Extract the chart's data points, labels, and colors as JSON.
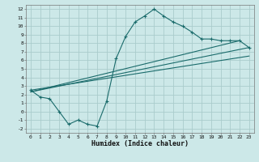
{
  "bg_color": "#cce8e8",
  "grid_color": "#aacccc",
  "line_color": "#1a6b6b",
  "xlabel": "Humidex (Indice chaleur)",
  "xlim": [
    -0.5,
    23.5
  ],
  "ylim": [
    -2.5,
    12.5
  ],
  "xticks": [
    0,
    1,
    2,
    3,
    4,
    5,
    6,
    7,
    8,
    9,
    10,
    11,
    12,
    13,
    14,
    15,
    16,
    17,
    18,
    19,
    20,
    21,
    22,
    23
  ],
  "yticks": [
    -2,
    -1,
    0,
    1,
    2,
    3,
    4,
    5,
    6,
    7,
    8,
    9,
    10,
    11,
    12
  ],
  "curve1_x": [
    0,
    1,
    2,
    3,
    4,
    5,
    6,
    7,
    8,
    9,
    10,
    11,
    12,
    13,
    14,
    15,
    16,
    17,
    18,
    19,
    20,
    21,
    22,
    23
  ],
  "curve1_y": [
    2.5,
    1.7,
    1.5,
    0.0,
    -1.5,
    -1.0,
    -1.5,
    -1.7,
    1.2,
    6.2,
    8.8,
    10.5,
    11.2,
    12.0,
    11.2,
    10.5,
    10.0,
    9.3,
    8.5,
    8.5,
    8.3,
    8.3,
    8.3,
    7.5
  ],
  "line2_x": [
    0,
    22
  ],
  "line2_y": [
    2.3,
    8.3
  ],
  "line3_x": [
    0,
    23
  ],
  "line3_y": [
    2.3,
    7.5
  ],
  "line4_x": [
    0,
    23
  ],
  "line4_y": [
    2.5,
    6.5
  ]
}
